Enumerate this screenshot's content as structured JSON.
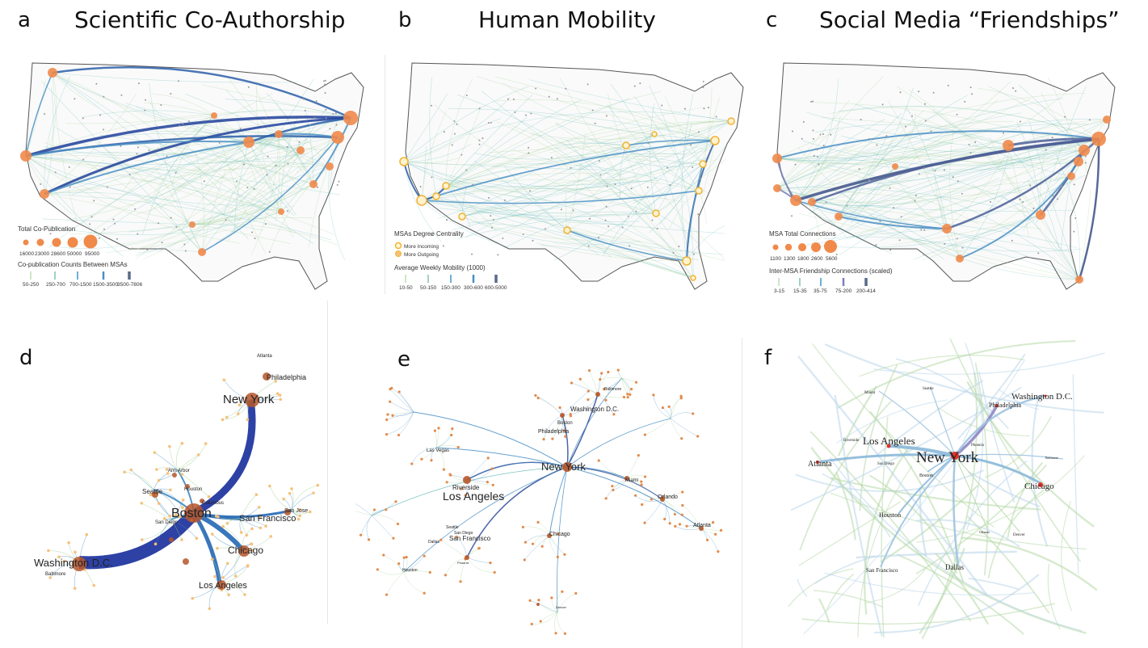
{
  "panels": {
    "a": {
      "letter": "a",
      "title": "Scientific Co-Authorship",
      "legend_size_title": "Total Co-Publication",
      "legend_size_values": [
        "16000",
        "23000",
        "28600",
        "50000",
        "95000"
      ],
      "legend_edge_title": "Co-publication Counts Between MSAs",
      "legend_edge_values": [
        "50-250",
        "250-700",
        "700-1500",
        "1500-3500",
        "3500-7806"
      ]
    },
    "b": {
      "letter": "b",
      "title": "Human Mobility",
      "legend_node_title": "MSAs Degree Centrality",
      "legend_incoming": "More Incoming",
      "legend_outgoing": "More Outgoing",
      "legend_edge_title": "Average Weekly Mobility (1000)",
      "legend_edge_values": [
        "10-50",
        "50-150",
        "150-300",
        "300-600",
        "600-5000"
      ]
    },
    "c": {
      "letter": "c",
      "title": "Social Media “Friendships”",
      "legend_size_title": "MSA Total Connections",
      "legend_size_values": [
        "1100",
        "1300",
        "1800",
        "2600",
        "5600"
      ],
      "legend_edge_title": "Inter-MSA Friendship Connections (scaled)",
      "legend_edge_values": [
        "3-15",
        "15-35",
        "35-75",
        "75-200",
        "200-414"
      ]
    },
    "d": {
      "letter": "d",
      "labels": {
        "new_york": "New York",
        "philadelphia": "Philadelphia",
        "atlanta": "Atlanta",
        "boston": "Boston",
        "seattle": "Seattle",
        "ann_arbor": "Ann Arbor",
        "houston": "Houston",
        "san_diego": "San Diego",
        "columbus": "Columbus",
        "san_jose": "San Jose",
        "san_francisco": "San Francisco",
        "chicago": "Chicago",
        "los_angeles": "Los Angeles",
        "washington": "Washington D.C.",
        "baltimore": "Baltimore"
      }
    },
    "e": {
      "letter": "e",
      "labels": {
        "new_york": "New York",
        "washington": "Washington D.C.",
        "baltimore": "Baltimore",
        "boston": "Boston",
        "philadelphia": "Philadelphia",
        "las_vegas": "Las Vegas",
        "riverside": "Riverside",
        "los_angeles": "Los Angeles",
        "san_francisco": "San Francisco",
        "san_diego": "San Diego",
        "seattle": "Seattle",
        "dallas": "Dallas",
        "houston": "Houston",
        "chicago": "Chicago",
        "miami": "Miami",
        "orlando": "Orlando",
        "atlanta": "Atlanta",
        "phoenix": "Phoenix",
        "denver": "Denver"
      }
    },
    "f": {
      "letter": "f",
      "labels": {
        "new_york": "New York",
        "los_angeles": "Los Angeles",
        "atlanta": "Atlanta",
        "washington": "Washington D.C.",
        "philadelphia": "Philadelphia",
        "chicago": "Chicago",
        "houston": "Houston",
        "dallas": "Dallas",
        "san_francisco": "San Francisco",
        "boston": "Boston",
        "miami": "Miami",
        "seattle": "Seattle",
        "riverside": "Riverside",
        "san_diego": "San Diego",
        "phoenix": "Phoenix",
        "baltimore": "Baltimore",
        "orlando": "Orlando",
        "denver": "Denver"
      }
    }
  },
  "colors": {
    "node_orange": "#f08a4b",
    "node_brown": "#b5562a",
    "node_light": "#f6c27a",
    "edge_dark": "#1f3f9a",
    "edge_blue": "#4a8fc4",
    "edge_teal": "#5fb6b4",
    "edge_green": "#9ccf8e"
  }
}
